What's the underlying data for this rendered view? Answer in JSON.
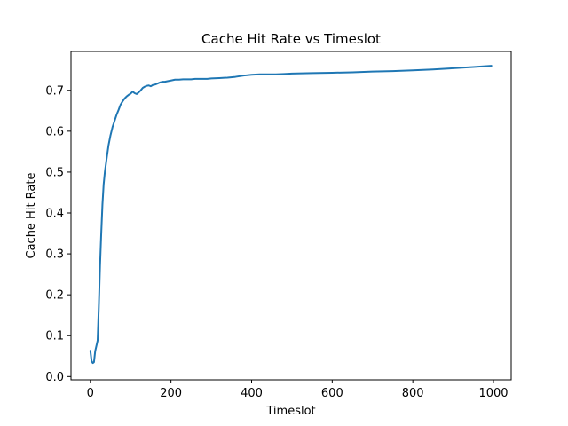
{
  "chart_data": {
    "type": "line",
    "title": "Cache Hit Rate vs Timeslot",
    "xlabel": "Timeslot",
    "ylabel": "Cache Hit Rate",
    "xlim": [
      -48,
      1044
    ],
    "ylim": [
      -0.008,
      0.795
    ],
    "grid": false,
    "line_color": "#1f77b4",
    "x_ticks": [
      {
        "value": 0,
        "label": "0"
      },
      {
        "value": 200,
        "label": "200"
      },
      {
        "value": 400,
        "label": "400"
      },
      {
        "value": 600,
        "label": "600"
      },
      {
        "value": 800,
        "label": "800"
      },
      {
        "value": 1000,
        "label": "1000"
      }
    ],
    "y_ticks": [
      {
        "value": 0.0,
        "label": "0.0"
      },
      {
        "value": 0.1,
        "label": "0.1"
      },
      {
        "value": 0.2,
        "label": "0.2"
      },
      {
        "value": 0.3,
        "label": "0.3"
      },
      {
        "value": 0.4,
        "label": "0.4"
      },
      {
        "value": 0.5,
        "label": "0.5"
      },
      {
        "value": 0.6,
        "label": "0.6"
      },
      {
        "value": 0.7,
        "label": "0.7"
      }
    ],
    "series": [
      {
        "x": [
          0,
          3,
          6,
          9,
          12,
          15,
          18,
          21,
          24,
          27,
          30,
          33,
          36,
          40,
          45,
          50,
          55,
          60,
          65,
          70,
          75,
          80,
          85,
          90,
          95,
          100,
          105,
          110,
          115,
          120,
          125,
          130,
          135,
          140,
          145,
          150,
          155,
          160,
          165,
          170,
          175,
          180,
          185,
          190,
          200,
          210,
          220,
          230,
          240,
          250,
          260,
          270,
          280,
          290,
          300,
          320,
          340,
          360,
          380,
          400,
          420,
          440,
          460,
          480,
          500,
          550,
          600,
          650,
          700,
          750,
          800,
          850,
          900,
          950,
          995
        ],
        "y": [
          0.063,
          0.038,
          0.033,
          0.035,
          0.062,
          0.075,
          0.088,
          0.17,
          0.27,
          0.35,
          0.42,
          0.47,
          0.5,
          0.53,
          0.565,
          0.59,
          0.61,
          0.625,
          0.64,
          0.652,
          0.665,
          0.673,
          0.68,
          0.685,
          0.689,
          0.692,
          0.697,
          0.693,
          0.691,
          0.695,
          0.7,
          0.706,
          0.709,
          0.711,
          0.712,
          0.71,
          0.713,
          0.714,
          0.716,
          0.718,
          0.72,
          0.721,
          0.721,
          0.722,
          0.724,
          0.726,
          0.726,
          0.727,
          0.727,
          0.727,
          0.728,
          0.728,
          0.728,
          0.728,
          0.729,
          0.73,
          0.731,
          0.733,
          0.736,
          0.738,
          0.739,
          0.739,
          0.739,
          0.74,
          0.741,
          0.742,
          0.743,
          0.744,
          0.746,
          0.747,
          0.749,
          0.751,
          0.754,
          0.757,
          0.76
        ]
      }
    ]
  }
}
